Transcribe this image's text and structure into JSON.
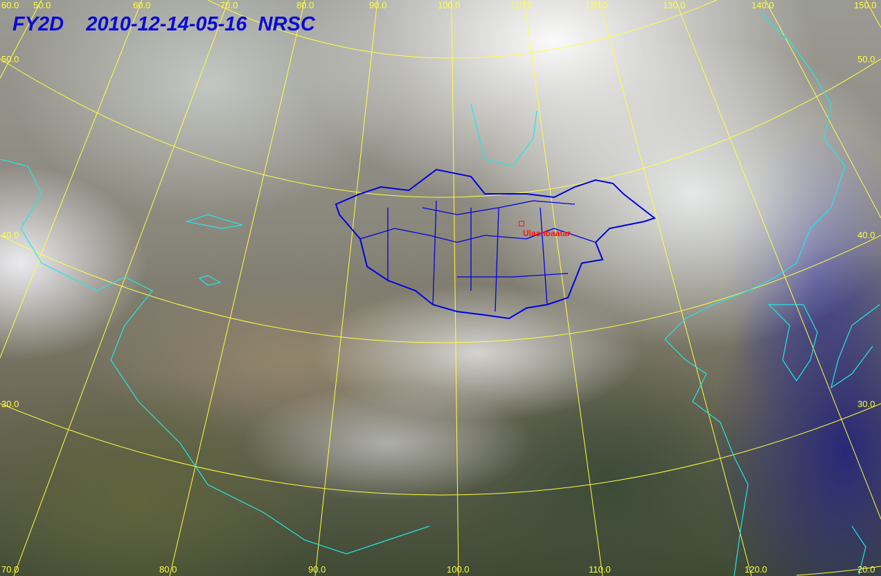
{
  "header": {
    "satellite": "FY2D",
    "datetime": "2010-12-14-05-16",
    "agency": "NRSC"
  },
  "graticule": {
    "color": "#ffff40",
    "top_labels": [
      "50.0",
      "60.0",
      "70.0",
      "80.0",
      "90.0",
      "100.0",
      "110.0",
      "120.0",
      "130.0",
      "140.0",
      "150.0"
    ],
    "bottom_labels": [
      "70.0",
      "80.0",
      "90.0",
      "100.0",
      "110.0",
      "120.0"
    ],
    "left_labels": [
      "60.0",
      "50.0",
      "40.0",
      "30.0"
    ],
    "right_labels": [
      "50.0",
      "40.0",
      "30.0",
      "20.0"
    ]
  },
  "map": {
    "city_label": "Ulaanbaatar",
    "city_color": "#ff1010",
    "border_color": "#0000e0",
    "coast_color": "#20e8e8"
  }
}
